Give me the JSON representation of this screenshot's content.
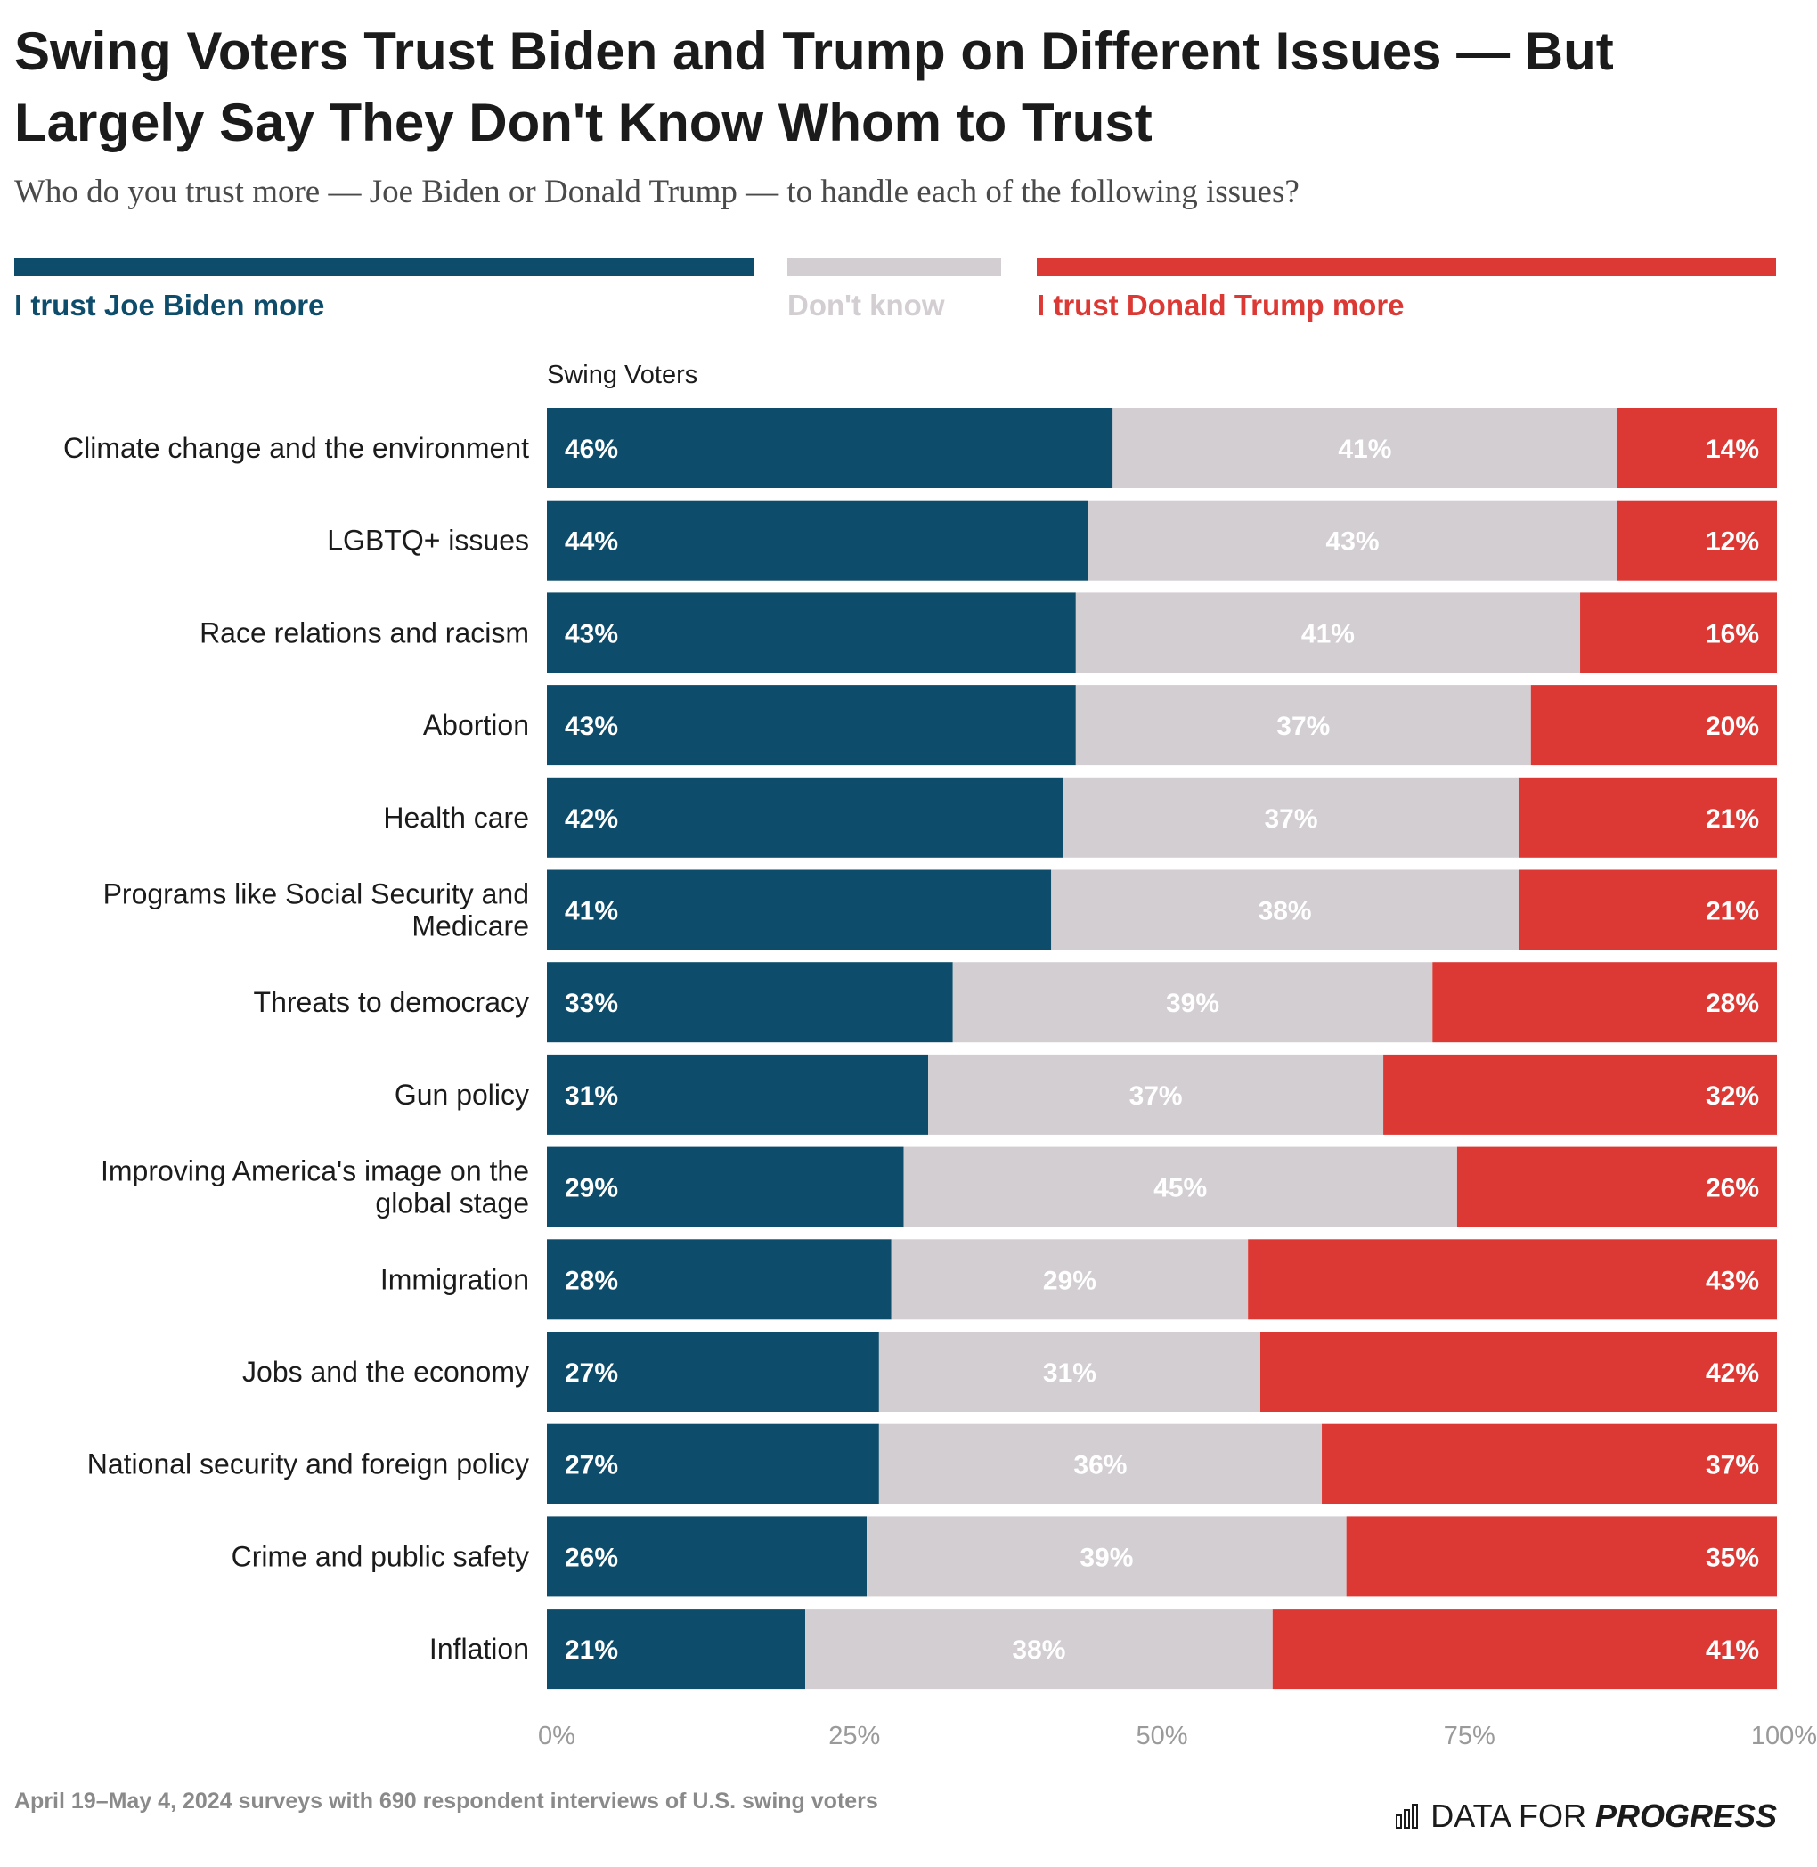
{
  "header": {
    "title": "Swing Voters Trust Biden and Trump on Different Issues — But Largely Say They Don't Know Whom to Trust",
    "subtitle": "Who do you trust more — Joe Biden or Donald Trump — to handle each of the following issues?"
  },
  "legend": {
    "items": [
      {
        "label": "I trust Joe Biden more",
        "color": "#0d4d6b"
      },
      {
        "label": "Don't know",
        "color": "#d3ced2"
      },
      {
        "label": "I trust Donald Trump more",
        "color": "#dc3935"
      }
    ]
  },
  "chart_data": {
    "type": "bar",
    "orientation": "horizontal",
    "stacked": true,
    "group_label": "Swing Voters",
    "categories": [
      "Climate change and the environment",
      "LGBTQ+ issues",
      "Race relations and racism",
      "Abortion",
      "Health care",
      "Programs like Social Security and Medicare",
      "Threats to democracy",
      "Gun policy",
      "Improving America's image on the global stage",
      "Immigration",
      "Jobs and the economy",
      "National security and foreign policy",
      "Crime and public safety",
      "Inflation"
    ],
    "series": [
      {
        "name": "I trust Joe Biden more",
        "color": "#0d4d6b",
        "label_color": "#ffffff",
        "values": [
          46,
          44,
          43,
          43,
          42,
          41,
          33,
          31,
          29,
          28,
          27,
          27,
          26,
          21
        ]
      },
      {
        "name": "Don't know",
        "color": "#d3ced2",
        "label_color": "#ffffff",
        "values": [
          41,
          43,
          41,
          37,
          37,
          38,
          39,
          37,
          45,
          29,
          31,
          36,
          39,
          38
        ]
      },
      {
        "name": "I trust Donald Trump more",
        "color": "#dc3935",
        "label_color": "#ffffff",
        "values": [
          14,
          12,
          16,
          20,
          21,
          21,
          28,
          32,
          26,
          43,
          42,
          37,
          35,
          41
        ]
      }
    ],
    "xlim": [
      0,
      100
    ],
    "x_ticks": [
      "0%",
      "25%",
      "50%",
      "75%",
      "100%"
    ],
    "x_tick_values": [
      0,
      25,
      50,
      75,
      100
    ],
    "value_suffix": "%"
  },
  "footer": {
    "note": "April 19–May 4, 2024 surveys with 690 respondent interviews of U.S. swing voters",
    "brand_prefix": "DATA FOR",
    "brand_strong": "PROGRESS"
  }
}
